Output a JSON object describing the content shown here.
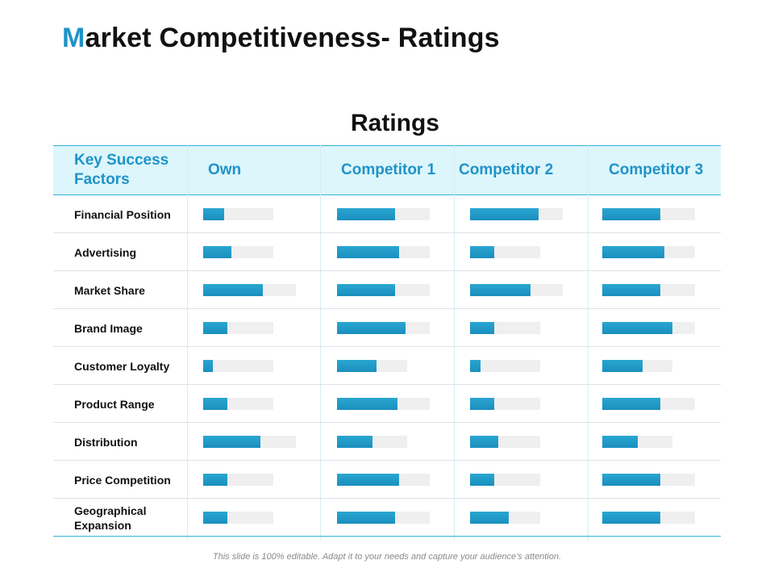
{
  "title": {
    "accent_letter": "M",
    "rest": "arket Competitiveness- Ratings"
  },
  "footer": "This slide is 100% editable. Adapt it to your needs and capture your audience's attention.",
  "colors": {
    "accent": "#1f93c9",
    "header_bg": "#dcf6fb",
    "bar_fill": "#1f96c6",
    "bar_track": "#efefef"
  },
  "chart_data": {
    "type": "bar",
    "title": "Ratings",
    "row_header": "Key Success Factors",
    "value_scale": "fraction of bar track filled (0-1)",
    "categories": [
      "Financial Position",
      "Advertising",
      "Market Share",
      "Brand Image",
      "Customer Loyalty",
      "Product Range",
      "Distribution",
      "Price Competition",
      "Geographical Expansion"
    ],
    "series": [
      {
        "name": "Own",
        "values": [
          0.3,
          0.4,
          0.64,
          0.34,
          0.14,
          0.34,
          0.62,
          0.34,
          0.34
        ]
      },
      {
        "name": "Competitor 1",
        "values": [
          0.63,
          0.67,
          0.63,
          0.74,
          0.56,
          0.65,
          0.5,
          0.67,
          0.63
        ]
      },
      {
        "name": "Competitor 2",
        "values": [
          0.74,
          0.35,
          0.65,
          0.34,
          0.15,
          0.34,
          0.4,
          0.34,
          0.55
        ]
      },
      {
        "name": "Competitor 3",
        "values": [
          0.63,
          0.67,
          0.63,
          0.76,
          0.57,
          0.63,
          0.5,
          0.63,
          0.63
        ]
      }
    ]
  }
}
